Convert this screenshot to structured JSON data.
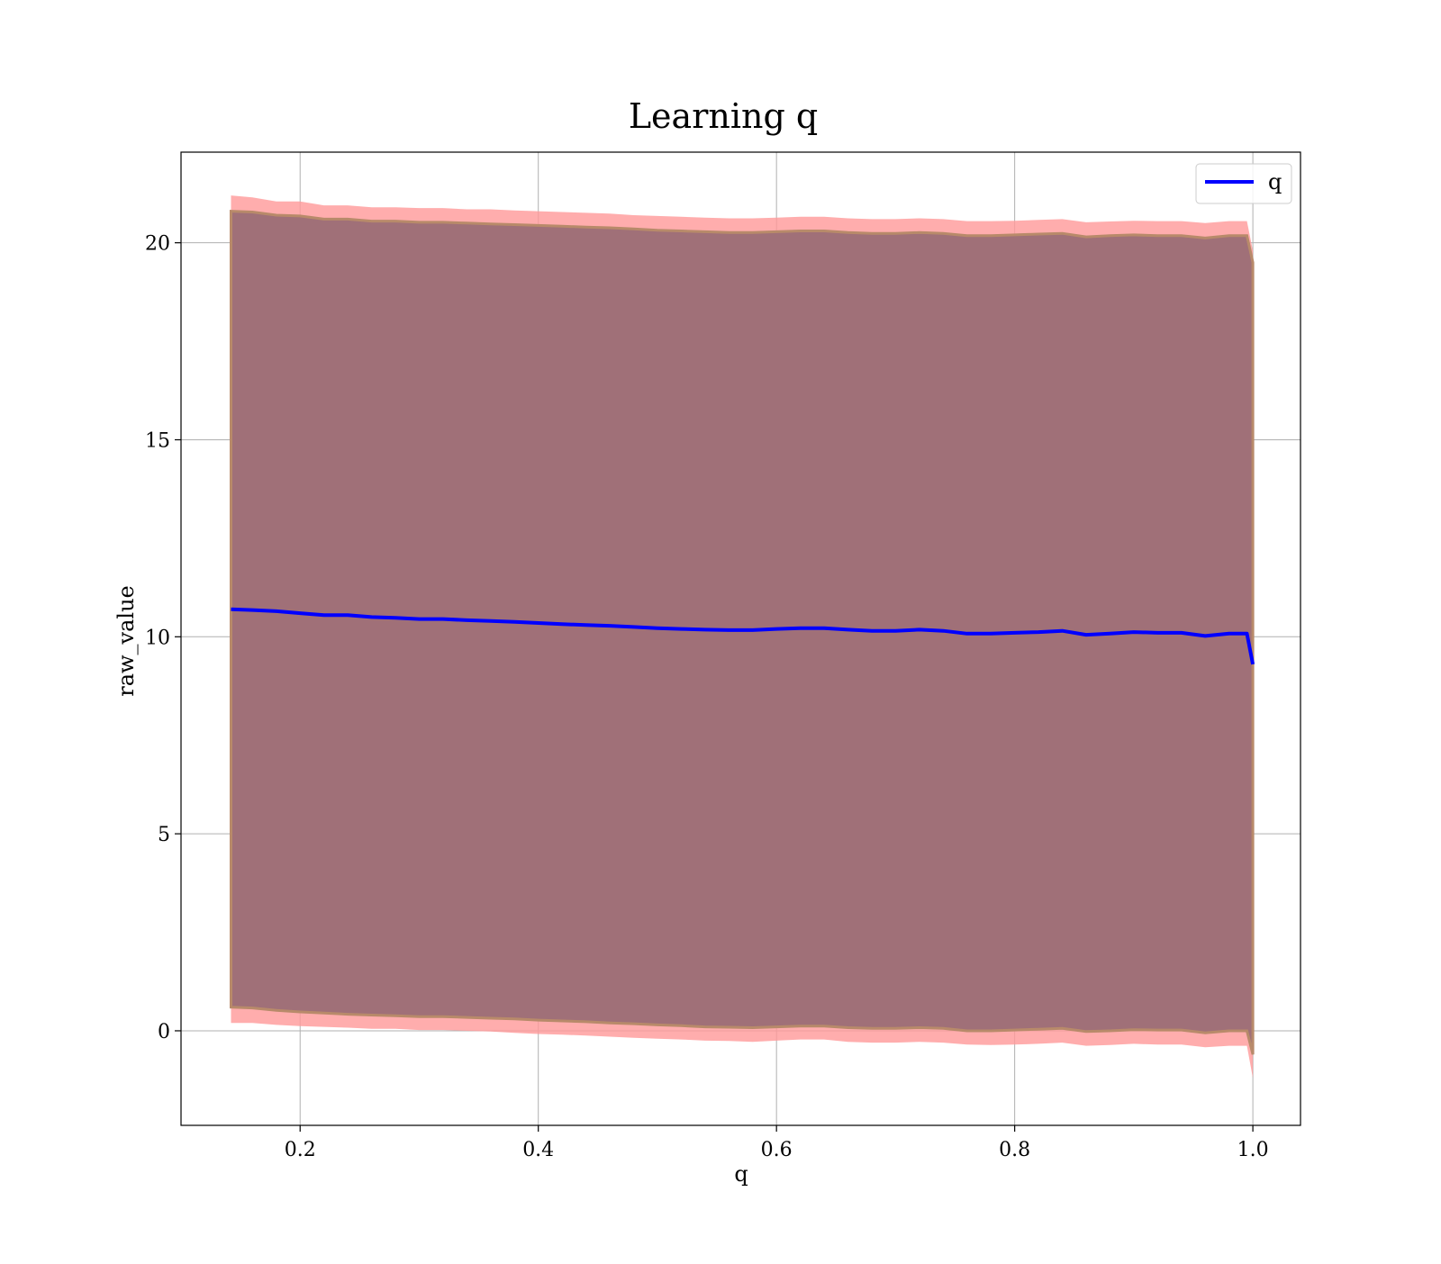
{
  "chart_data": {
    "type": "area",
    "title": "Learning q",
    "xlabel": "q",
    "ylabel": "raw_value",
    "xlim": [
      0.1,
      1.04
    ],
    "ylim": [
      -2.4,
      22.3
    ],
    "x_ticks": [
      0.2,
      0.4,
      0.6,
      0.8,
      1.0
    ],
    "x_tick_labels": [
      "0.2",
      "0.4",
      "0.6",
      "0.8",
      "1.0"
    ],
    "y_ticks": [
      0,
      5,
      10,
      15,
      20
    ],
    "y_tick_labels": [
      "0",
      "5",
      "10",
      "15",
      "20"
    ],
    "grid": true,
    "legend_position": "top-right",
    "legend": [
      "q"
    ],
    "x": [
      0.142,
      0.16,
      0.18,
      0.2,
      0.22,
      0.24,
      0.26,
      0.28,
      0.3,
      0.32,
      0.34,
      0.36,
      0.38,
      0.4,
      0.42,
      0.44,
      0.46,
      0.48,
      0.5,
      0.52,
      0.54,
      0.56,
      0.58,
      0.6,
      0.62,
      0.64,
      0.66,
      0.68,
      0.7,
      0.72,
      0.74,
      0.76,
      0.78,
      0.8,
      0.82,
      0.84,
      0.86,
      0.88,
      0.9,
      0.92,
      0.94,
      0.96,
      0.98,
      0.995,
      1.0
    ],
    "series": [
      {
        "name": "q",
        "color": "#0000ff",
        "values": [
          10.7,
          10.68,
          10.65,
          10.6,
          10.55,
          10.55,
          10.5,
          10.48,
          10.45,
          10.45,
          10.42,
          10.4,
          10.38,
          10.35,
          10.32,
          10.3,
          10.28,
          10.25,
          10.22,
          10.2,
          10.18,
          10.17,
          10.17,
          10.2,
          10.22,
          10.22,
          10.18,
          10.15,
          10.15,
          10.18,
          10.15,
          10.08,
          10.08,
          10.1,
          10.12,
          10.15,
          10.05,
          10.08,
          10.12,
          10.1,
          10.1,
          10.02,
          10.08,
          10.08,
          9.3
        ]
      }
    ],
    "bands": [
      {
        "role": "outer",
        "color": "#ff9999",
        "upper": [
          21.2,
          21.15,
          21.05,
          21.05,
          20.95,
          20.95,
          20.9,
          20.9,
          20.88,
          20.88,
          20.85,
          20.85,
          20.82,
          20.8,
          20.78,
          20.76,
          20.74,
          20.7,
          20.68,
          20.66,
          20.64,
          20.62,
          20.62,
          20.64,
          20.66,
          20.66,
          20.62,
          20.6,
          20.6,
          20.62,
          20.6,
          20.55,
          20.55,
          20.56,
          20.58,
          20.6,
          20.52,
          20.54,
          20.56,
          20.55,
          20.55,
          20.5,
          20.55,
          20.55,
          19.8
        ],
        "lower": [
          0.2,
          0.2,
          0.15,
          0.12,
          0.1,
          0.08,
          0.05,
          0.05,
          0.02,
          0.02,
          0.0,
          -0.02,
          -0.05,
          -0.08,
          -0.1,
          -0.12,
          -0.15,
          -0.18,
          -0.2,
          -0.22,
          -0.25,
          -0.26,
          -0.28,
          -0.25,
          -0.22,
          -0.22,
          -0.28,
          -0.3,
          -0.3,
          -0.28,
          -0.3,
          -0.35,
          -0.36,
          -0.35,
          -0.33,
          -0.3,
          -0.38,
          -0.36,
          -0.33,
          -0.35,
          -0.35,
          -0.42,
          -0.38,
          -0.38,
          -1.2
        ]
      },
      {
        "role": "inner",
        "color": "#a07078",
        "upper": [
          20.8,
          20.78,
          20.7,
          20.68,
          20.6,
          20.6,
          20.55,
          20.55,
          20.52,
          20.52,
          20.5,
          20.48,
          20.46,
          20.44,
          20.42,
          20.4,
          20.38,
          20.35,
          20.32,
          20.3,
          20.28,
          20.26,
          20.26,
          20.28,
          20.3,
          20.3,
          20.26,
          20.24,
          20.24,
          20.26,
          20.24,
          20.18,
          20.18,
          20.2,
          20.22,
          20.24,
          20.15,
          20.18,
          20.2,
          20.18,
          20.18,
          20.12,
          20.18,
          20.18,
          19.5
        ],
        "lower": [
          0.6,
          0.58,
          0.52,
          0.48,
          0.45,
          0.42,
          0.4,
          0.38,
          0.36,
          0.36,
          0.34,
          0.32,
          0.3,
          0.27,
          0.25,
          0.23,
          0.2,
          0.18,
          0.15,
          0.13,
          0.1,
          0.09,
          0.08,
          0.1,
          0.12,
          0.12,
          0.08,
          0.06,
          0.06,
          0.08,
          0.06,
          0.0,
          0.0,
          0.02,
          0.04,
          0.06,
          -0.02,
          0.0,
          0.03,
          0.02,
          0.02,
          -0.05,
          0.0,
          0.0,
          -0.6
        ]
      }
    ]
  }
}
